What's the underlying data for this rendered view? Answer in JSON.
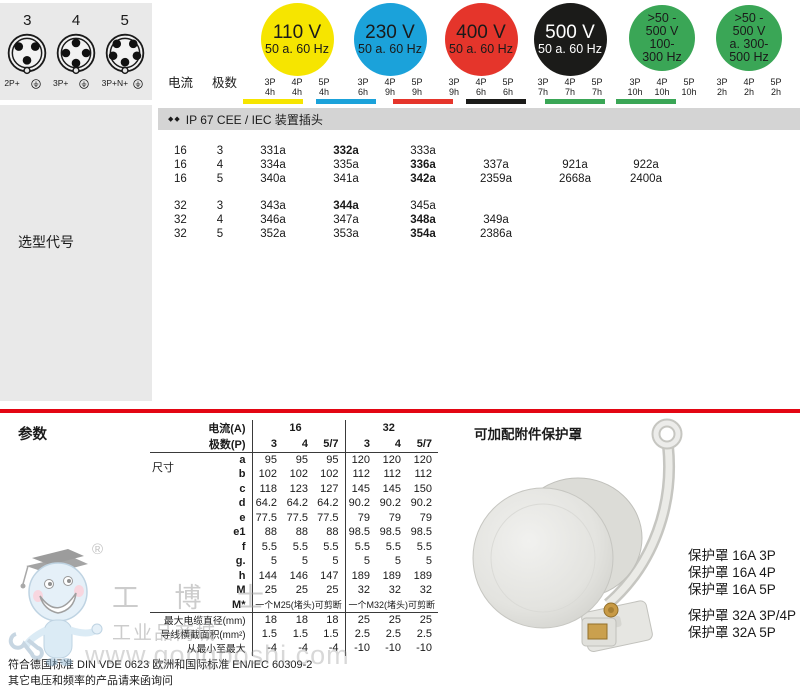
{
  "top": {
    "current_label": "电流",
    "poles_label": "极数",
    "connectors": [
      {
        "number": "3",
        "label": "2P+",
        "pins": 3
      },
      {
        "number": "4",
        "label": "3P+",
        "pins": 4
      },
      {
        "number": "5",
        "label": "3P+N+",
        "pins": 5
      }
    ],
    "voltage_groups": [
      {
        "label_lines": [
          "110 V",
          "50 a. 60 Hz"
        ],
        "color": "#f6e500",
        "text_color": "#1a1a1a",
        "columns": [
          {
            "pole": "3P",
            "clock": "4h"
          },
          {
            "pole": "4P",
            "clock": "4h"
          },
          {
            "pole": "5P",
            "clock": "4h"
          }
        ]
      },
      {
        "label_lines": [
          "230 V",
          "50 a. 60 Hz"
        ],
        "color": "#1ba2da",
        "text_color": "#1a1a1a",
        "columns": [
          {
            "pole": "3P",
            "clock": "6h"
          },
          {
            "pole": "4P",
            "clock": "9h"
          },
          {
            "pole": "5P",
            "clock": "9h"
          }
        ]
      },
      {
        "label_lines": [
          "400 V",
          "50 a. 60 Hz"
        ],
        "color": "#e5352b",
        "text_color": "#1a1a1a",
        "columns": [
          {
            "pole": "3P",
            "clock": "9h"
          },
          {
            "pole": "4P",
            "clock": "6h"
          },
          {
            "pole": "5P",
            "clock": "6h"
          }
        ]
      },
      {
        "label_lines": [
          "500 V",
          "50 a. 60 Hz"
        ],
        "color": "#1b1b19",
        "text_color": "#ffffff",
        "columns": [
          {
            "pole": "3P",
            "clock": "7h"
          },
          {
            "pole": "4P",
            "clock": "7h"
          },
          {
            "pole": "5P",
            "clock": "7h"
          }
        ]
      },
      {
        "label_lines": [
          ">50 -",
          "500 V",
          "100-",
          "300 Hz"
        ],
        "color": "#3aa656",
        "text_color": "#1a1a1a",
        "columns": [
          {
            "pole": "3P",
            "clock": "10h"
          },
          {
            "pole": "4P",
            "clock": "10h"
          },
          {
            "pole": "5P",
            "clock": "10h"
          }
        ]
      },
      {
        "label_lines": [
          ">50 -",
          "500 V",
          "a. 300-",
          "500 Hz"
        ],
        "color": "#3aa656",
        "text_color": "#1a1a1a",
        "columns": [
          {
            "pole": "3P",
            "clock": "2h"
          },
          {
            "pole": "4P",
            "clock": "2h"
          },
          {
            "pole": "5P",
            "clock": "2h"
          }
        ]
      }
    ]
  },
  "selection": {
    "band_bullets": "◆◆",
    "band_title": "IP 67 CEE / IEC 装置插头",
    "sidebar_label": "选型代号",
    "rows": [
      {
        "current": "16",
        "poles": "3",
        "cells": [
          {
            "v": "331a"
          },
          {
            "v": "332a",
            "bold": true
          },
          {
            "v": "333a"
          },
          {
            "v": ""
          },
          {
            "v": ""
          },
          {
            "v": ""
          }
        ]
      },
      {
        "current": "16",
        "poles": "4",
        "cells": [
          {
            "v": "334a"
          },
          {
            "v": "335a"
          },
          {
            "v": "336a",
            "bold": true
          },
          {
            "v": "337a"
          },
          {
            "v": "921a"
          },
          {
            "v": "922a"
          }
        ]
      },
      {
        "current": "16",
        "poles": "5",
        "cells": [
          {
            "v": "340a"
          },
          {
            "v": "341a"
          },
          {
            "v": "342a",
            "bold": true
          },
          {
            "v": "2359a"
          },
          {
            "v": "2668a"
          },
          {
            "v": "2400a"
          }
        ]
      },
      {
        "current": "32",
        "poles": "3",
        "cells": [
          {
            "v": "343a"
          },
          {
            "v": "344a",
            "bold": true
          },
          {
            "v": "345a"
          },
          {
            "v": ""
          },
          {
            "v": ""
          },
          {
            "v": ""
          }
        ]
      },
      {
        "current": "32",
        "poles": "4",
        "cells": [
          {
            "v": "346a"
          },
          {
            "v": "347a"
          },
          {
            "v": "348a",
            "bold": true
          },
          {
            "v": "349a"
          },
          {
            "v": ""
          },
          {
            "v": ""
          }
        ]
      },
      {
        "current": "32",
        "poles": "5",
        "cells": [
          {
            "v": "352a"
          },
          {
            "v": "353a"
          },
          {
            "v": "354a",
            "bold": true
          },
          {
            "v": "2386a"
          },
          {
            "v": ""
          },
          {
            "v": ""
          }
        ]
      }
    ]
  },
  "params": {
    "title": "参数",
    "table": {
      "current_header": "电流(A)",
      "current_groups": [
        "16",
        "32"
      ],
      "poles_header": "极数(P)",
      "poles_cols": [
        "3",
        "4",
        "5/7",
        "3",
        "4",
        "5/7"
      ],
      "dims_label": "尺寸",
      "dim_rows": [
        {
          "label": "a",
          "values": [
            "95",
            "95",
            "95",
            "120",
            "120",
            "120"
          ]
        },
        {
          "label": "b",
          "values": [
            "102",
            "102",
            "102",
            "112",
            "112",
            "112"
          ]
        },
        {
          "label": "c",
          "values": [
            "118",
            "123",
            "127",
            "145",
            "145",
            "150"
          ]
        },
        {
          "label": "d",
          "values": [
            "64.2",
            "64.2",
            "64.2",
            "90.2",
            "90.2",
            "90.2"
          ]
        },
        {
          "label": "e",
          "values": [
            "77.5",
            "77.5",
            "77.5",
            "79",
            "79",
            "79"
          ]
        },
        {
          "label": "e1",
          "values": [
            "88",
            "88",
            "88",
            "98.5",
            "98.5",
            "98.5"
          ]
        },
        {
          "label": "f",
          "values": [
            "5.5",
            "5.5",
            "5.5",
            "5.5",
            "5.5",
            "5.5"
          ]
        },
        {
          "label": "g.",
          "values": [
            "5",
            "5",
            "5",
            "5",
            "5",
            "5"
          ]
        },
        {
          "label": "h",
          "values": [
            "144",
            "146",
            "147",
            "189",
            "189",
            "189"
          ]
        },
        {
          "label": "M",
          "values": [
            "25",
            "25",
            "25",
            "32",
            "32",
            "32"
          ]
        }
      ],
      "m_star": {
        "label": "M*",
        "left": "一个M25(堵头)可剪断",
        "right": "一个M32(堵头)可剪断"
      },
      "extra_rows": [
        {
          "label": "最大电缆直径(mm)",
          "values": [
            "18",
            "18",
            "18",
            "25",
            "25",
            "25"
          ]
        },
        {
          "label": "导线横截面积(mm²)",
          "values": [
            "1.5",
            "1.5",
            "1.5",
            "2.5",
            "2.5",
            "2.5"
          ]
        },
        {
          "label": "从最小至最大",
          "values": [
            "-4",
            "-4",
            "-4",
            "-10",
            "-10",
            "-10"
          ]
        }
      ]
    }
  },
  "accessory": {
    "title": "可加配附件保护罩",
    "groups": [
      [
        "保护罩 16A 3P",
        "保护罩 16A 4P",
        "保护罩 16A 5P"
      ],
      [
        "保护罩 32A 3P/4P",
        "保护罩 32A 5P"
      ]
    ]
  },
  "footer": {
    "line1": "符合德国标准 DIN VDE 0623 欧洲和国际标准 EN/IEC 60309-2",
    "line2": "其它电压和频率的产品请来函询问"
  },
  "watermark": {
    "reg": "®",
    "brand": "工 博 士",
    "sub": "工业品商城",
    "url": "www.gongboshi.com"
  }
}
